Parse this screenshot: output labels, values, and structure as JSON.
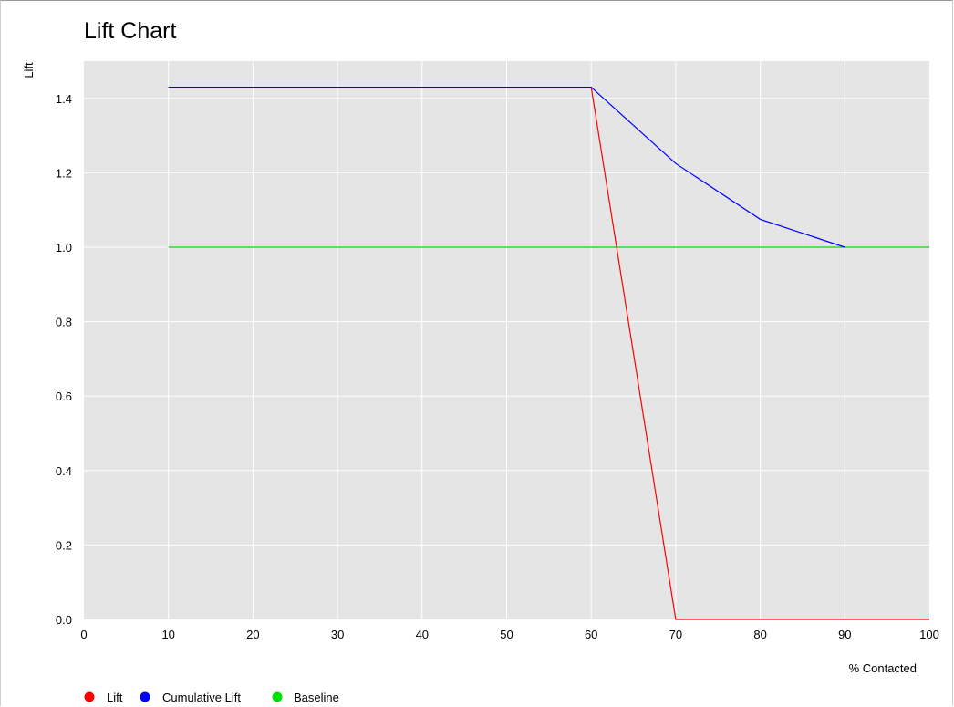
{
  "chart_data": {
    "type": "line",
    "title": "Lift Chart",
    "xlabel": "% Contacted",
    "ylabel": "Lift",
    "xlim": [
      0,
      100
    ],
    "ylim": [
      0,
      1.5
    ],
    "x_ticks": [
      0,
      10,
      20,
      30,
      40,
      50,
      60,
      70,
      80,
      90,
      100
    ],
    "y_ticks": [
      0.0,
      0.2,
      0.4,
      0.6,
      0.8,
      1.0,
      1.2,
      1.4
    ],
    "y_tick_labels": [
      "0.0",
      "0.2",
      "0.4",
      "0.6",
      "0.8",
      "1.0",
      "1.2",
      "1.4"
    ],
    "grid": true,
    "legend_position": "bottom-left",
    "series": [
      {
        "name": "Lift",
        "color": "#ff0000",
        "x": [
          10,
          20,
          30,
          40,
          50,
          60,
          70,
          80,
          90,
          100
        ],
        "values": [
          1.43,
          1.43,
          1.43,
          1.43,
          1.43,
          1.43,
          0.0,
          0.0,
          0.0,
          0.0
        ]
      },
      {
        "name": "Cumulative Lift",
        "color": "#0000ff",
        "x": [
          10,
          20,
          30,
          40,
          50,
          60,
          70,
          80,
          90
        ],
        "values": [
          1.43,
          1.43,
          1.43,
          1.43,
          1.43,
          1.43,
          1.225,
          1.075,
          1.0
        ]
      },
      {
        "name": "Baseline",
        "color": "#00e000",
        "x": [
          10,
          100
        ],
        "values": [
          1.0,
          1.0
        ]
      }
    ]
  }
}
